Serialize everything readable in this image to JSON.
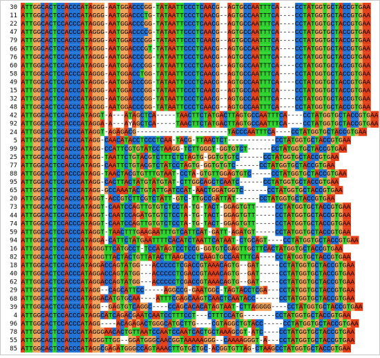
{
  "alignment": {
    "rows": [
      {
        "id": "30",
        "seq": "ATTGGCACTCCACCCATAGGG-AATGGACCCGG-TATAATTCCCTCAACG--AGTGCCAATTTCA----CCTATGGTGCTACCGTGAA"
      },
      {
        "id": "11",
        "seq": "ATTGGCACTCCACCCATAGGG-AATGGACCCTG-TATAATTCCCTCAACG--AGTGCCAATTTCA----CCTATGGTGCTACCGTGAA"
      },
      {
        "id": "22",
        "seq": "ATTGGCACTCCACCCATAGGG-AATGGACCCGG-TATAATTCCCTCAACG--AGTGCCAATTTCA----CCTATGGTGCTACCGTGAA"
      },
      {
        "id": "47",
        "seq": "ATTGGCACTCCACCCATAGGG-AATGGACCCCG-TATAATTCCCTCAACG--AGTGCCAATTTCA----CCTATGGTGCTACCGTGAA"
      },
      {
        "id": "79",
        "seq": "ATTGGCACTCCACCCATAGGG-AATGGACCCGG-TATAATTCCCTCAACG--AGTGCCAATTTCA----CCTATGGTGCTACCGTGAA"
      },
      {
        "id": "66",
        "seq": "ATTGGCACTCCACCCATAGGG-AATGGACCCGT-TATAATTCCCTCAACG--AGTGCCAATTTCA----CCTATGGTGCTACCGTGAA"
      },
      {
        "id": "76",
        "seq": "ATTGGCACTCCACCCATAGGG-AATGGACCCGG-TATAATTCCCTCAACG--AGTGCCAATTTCA----CCTATGGTGCTACCGTGAA"
      },
      {
        "id": "60",
        "seq": "ATTGGCACTCCACCCATAGGG-AATGGACCCGG-TATAATTCCCTCAACG--AGTGCCAATTTCA----CCTATGGTGCTACCGTGAA"
      },
      {
        "id": "58",
        "seq": "ATTGGCACTCCACCCATAGGG-AATGGACCTGG-TATAATTCCCTCAACG--AGTGCCAATTTCA----CCTATGGTGCTACCGTGAA"
      },
      {
        "id": "49",
        "seq": "ATTGGCACTCCACCCATAGGG-AATGGACCCGG-TATAATTCCCTCAACG--AGTGCCAATTTCA----CCTATGGTGCTACCGTGAA"
      },
      {
        "id": "15",
        "seq": "ATTGGCACTCCACCCATAGGG-AATGGACCCGG-TATAATTCCCTCAACG--AGTGCCAATTTCA----CCTATGGTGCTACCGTGAA"
      },
      {
        "id": "32",
        "seq": "ATTGGCACTCCACCCATAGGG-AATGGACCCGG-TATAATTCCCTCAACG--AGTGCCAATTTCA----CCTATGGTGCTACCGTGAA"
      },
      {
        "id": "48",
        "seq": "ATTGGCACTCCACCCATAGGG-AATGGACCCGG-TATAATTCCCTCAACG--AGTGCCAATTTCA----CCTATGGTGCTACCGTGAA"
      },
      {
        "id": "42",
        "seq": "ATTGGCACTCCACCCATAGGT-A---ATAGCTCA-----TAACTTCTATGACTTAGTGCCAATTTCA----CCTATGGTGCTACCGTGAA"
      },
      {
        "id": "92",
        "seq": "ATTGGCACTCCACCCATAGGA-A---AYAGCTCA-----TAACTTCTATGACTTAGTGCCAATTTCA----CCTATGGTGCTACCGTGAA"
      },
      {
        "id": "24",
        "seq": "ATTGGCACTCCACCCATAGGT-AGAGACG-----------------------TACCCAATTTCA----CCTATGGTGCTACCGTGAA"
      },
      {
        "id": "5",
        "seq": "ATTGGCACTCCACCCATAGG-CAACATACCTCCCTCAA-TACG-TTAACTCT------------CCTATGGTGCTACCGTGAA"
      },
      {
        "id": "99",
        "seq": "ATTGGCACTCCACCCATAGG-CCATTCGTGTATCCTAAGG-TCTTGGGT-GGTGTCT------CCTATGGTGCTACCGTGAA"
      },
      {
        "id": "25",
        "seq": "ATTGGCACTCCACCCATAGG-TAATTCTGTACGTCTTTCTCTAGTG-GGTGTGTC------CCTATGGTGCTACCGTGAA"
      },
      {
        "id": "77",
        "seq": "ATTGGCACTCCACCCATAGG-CAATTCTGTACGTCTATCCTAGTG-GGTGTGTC------CCTATGGTGCTACCGTGAA"
      },
      {
        "id": "88",
        "seq": "ATTGGCACTCCACCCATAGG-TAACTACGTGTTTGTAAT-CCTA-GTGTTGGAGTGTC-----CCTATGGTGCTACCGTGAA"
      },
      {
        "id": "95",
        "seq": "ATTGGCACTCCACCCATAGG-CACTTACTATGTATGTAT-CTTGGCAGCTCAATC------CCTATGGTGCTACCGTGAA"
      },
      {
        "id": "65",
        "seq": "ATTGGCACTCCACCCATAGG-GCCAAATACTGTATTGATCCAT-AACTGGATGGTC------CCTATGGTGCTACCGTGAA"
      },
      {
        "id": "20",
        "seq": "ATTGGCACTCCACCCATAGGT-ACCGTCTTCGTCTATT-GTC-TTGCCGATTAT------CCTATGGTGCTACCGTGAA"
      },
      {
        "id": "73",
        "seq": "ATTGGCACTCCACCCATAGGT-CAATCCAGTTGTGTCTCCTA-TG-TACT-GGAGTGTT-----CCTATGGTGCTACCGTGAA"
      },
      {
        "id": "44",
        "seq": "ATTGGCACTCCACCCATAGGT-CAATCCAGATGTGTCTCCTA-TG-TACT-GGAGTGTT-----CCTATGGTGCTACCGTGAA"
      },
      {
        "id": "74",
        "seq": "ATTGGCACTCCACCCATAGGT-CAATCCAGTTGTGTCTCCTA-TG-TACT-GGAGTGTT-----CCTATGGTGCTACCGTGAA"
      },
      {
        "id": "59",
        "seq": "ATTGGCACTCCACCCATAGGT-TAACTTTGAAGAATTTGTCATTCAT-GATT-AGATGT-----CCTATGGTGCTACCGTGAA"
      },
      {
        "id": "94",
        "seq": "ATTGGCACTCCACCCATAGGA-CATTCTATGAATTTTCACATCTAATTCATAAT-CTGCAGT----CCTATGGTGCTACCGTGAA"
      },
      {
        "id": "16",
        "seq": "ATTGGCACTCCACCCATAGGGTTCATGCCT-TCCATAGTCCTCCG-GGTGTCGAGTTGCTTCACTATGGTGCTACCGTGAA"
      },
      {
        "id": "82",
        "seq": "ATTGGCACTCCACCCATAGGGTTACTACTGTTATACTTAAGCCCTCAAGTGCCAATTTCA----CCTATGGTGCTACCGTGAA"
      },
      {
        "id": "18",
        "seq": "ATTGGCACTCCACCCATAGGACCAGTATGG---ACCCCCTCGACCGTAAACAGTG--GAT-----CCTATGGTGCTACCGTGAA"
      },
      {
        "id": "40",
        "seq": "ATTGGCACTCCACCCATAGGACCAGTATGG---ACCCCCTCGACCGTAAACAGTG--GAT-----CCTATGGTGCTACCGTGAA"
      },
      {
        "id": "62",
        "seq": "ATTGGCACTCCACCCATAGGACCAGTATGG---ACCCCCTCGACCGTAAACAGTG--GAT-----CCTATGGTGCTACCGTGAA"
      },
      {
        "id": "29",
        "seq": "ATTGGCACTCCACCCATAGG--CAGCATTCC-----AGGCCG-GAATGGC-TAGTACCTCGA---CCTATGGTGCTACCGTGAA"
      },
      {
        "id": "68",
        "seq": "ATTGGCACTCCACCCATAGGACATGTGCAA----ATTTCGAGCAAGTCAACTCAATACC------CCTATGGTGCTACCGTGAA"
      },
      {
        "id": "39",
        "seq": "ATTGGCACTCCACCCATAGG--GAGTGTCAGGC----CCAGCACACATAGTAAT-CTTAGGGG----CCTATGGTGCTACCGTGAA"
      },
      {
        "id": "4",
        "seq": "ATTGGCACTCCACCCATAGGCATCAGACGAATCAATCCTTTCCT---CTTTCCATG--------CCTATGGTGCTACCGTGAA"
      },
      {
        "id": "96",
        "seq": "ATTGGCACTCCACCCATAGG----ACAGAGACTGGGCATGCTTG----CGTAGGCTGTACC-----CCTATGGTGCTACCGTGAA"
      },
      {
        "id": "78",
        "seq": "ATTGGCACTCCACCCATAGGGAACACTGTTAATCCAATCCAATCACTGCTAAAGCGT-ATC----CCTATGGTGCTACCGTGAA"
      },
      {
        "id": "55",
        "seq": "ATTGGCACTCCACCCATAGGGTTGG--GGATGGGCAACGGTAAAAAGGG--CAAAAGGGT-A---CCTATGGTGCTACCGTGAA"
      },
      {
        "id": "85",
        "seq": "ATTGGCACTCCACCCATAGGCGAGATGGGCCAGTAAACTTGTGCTGC-ACGGTGTTAG-CTAAGCCTATGGTGCTACCGTGAA"
      }
    ]
  }
}
